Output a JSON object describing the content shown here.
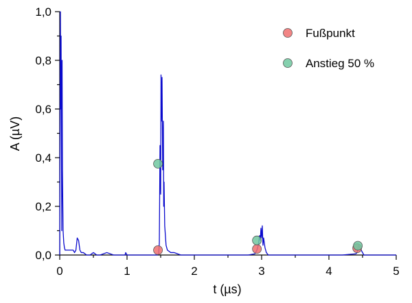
{
  "chart_data": {
    "type": "line",
    "title": "",
    "xlabel": "t (µs)",
    "ylabel": "A (µV)",
    "xlim": [
      0,
      5
    ],
    "ylim": [
      0,
      1.0
    ],
    "xticks": [
      0,
      1,
      2,
      3,
      4,
      5
    ],
    "xtick_labels": [
      "0",
      "1",
      "2",
      "3",
      "4",
      "5"
    ],
    "yticks": [
      0,
      0.2,
      0.4,
      0.6,
      0.8,
      1.0
    ],
    "ytick_labels": [
      "0,0",
      "0,2",
      "0,4",
      "0,6",
      "0,8",
      "1,0"
    ],
    "grid": false,
    "legend_position": "top-right",
    "colors": {
      "signal": "#0a0acd",
      "fusspunkt": "#f07070",
      "anstieg": "#70c8a0"
    },
    "signal": {
      "x": [
        0.0,
        0.01,
        0.015,
        0.02,
        0.03,
        0.035,
        0.04,
        0.05,
        0.06,
        0.07,
        0.08,
        0.1,
        0.15,
        0.2,
        0.22,
        0.24,
        0.26,
        0.28,
        0.3,
        0.32,
        0.35,
        0.4,
        0.45,
        0.5,
        0.55,
        0.6,
        0.7,
        0.8,
        0.9,
        0.97,
        0.98,
        1.0,
        1.1,
        1.2,
        1.3,
        1.4,
        1.45,
        1.47,
        1.48,
        1.49,
        1.5,
        1.505,
        1.51,
        1.52,
        1.53,
        1.54,
        1.545,
        1.55,
        1.56,
        1.57,
        1.58,
        1.6,
        1.65,
        1.7,
        1.75,
        1.8,
        2.0,
        2.2,
        2.4,
        2.6,
        2.8,
        2.9,
        2.93,
        2.95,
        2.97,
        2.98,
        2.99,
        3.0,
        3.01,
        3.02,
        3.03,
        3.05,
        3.07,
        3.1,
        3.2,
        3.4,
        3.6,
        3.8,
        4.0,
        4.2,
        4.4,
        4.42,
        4.44,
        4.46,
        4.48,
        4.5,
        4.52,
        4.6,
        4.8,
        5.0
      ],
      "values": [
        0.0,
        1.0,
        0.6,
        0.9,
        0.1,
        0.8,
        0.35,
        0.1,
        0.05,
        0.03,
        0.02,
        0.02,
        0.02,
        0.02,
        0.01,
        0.02,
        0.07,
        0.06,
        0.02,
        0.01,
        0.01,
        0.0,
        0.0,
        0.01,
        0.0,
        0.0,
        0.01,
        0.0,
        0.0,
        0.0,
        0.01,
        0.0,
        0.0,
        0.0,
        0.0,
        0.0,
        0.0,
        0.005,
        0.05,
        0.45,
        0.25,
        0.74,
        0.55,
        0.73,
        0.35,
        0.55,
        0.2,
        0.3,
        0.12,
        0.08,
        0.04,
        0.02,
        0.01,
        0.01,
        0.005,
        0.0,
        0.0,
        0.0,
        0.0,
        0.0,
        0.0,
        0.005,
        0.02,
        0.04,
        0.08,
        0.06,
        0.11,
        0.07,
        0.12,
        0.04,
        0.07,
        0.03,
        0.01,
        0.0,
        0.0,
        0.0,
        0.0,
        0.0,
        0.0,
        0.0,
        0.005,
        0.01,
        0.04,
        0.03,
        0.02,
        0.01,
        0.0,
        0.0,
        0.0,
        0.0
      ]
    },
    "series": [
      {
        "name": "Fußpunkt",
        "points": [
          [
            1.46,
            0.02
          ],
          [
            2.93,
            0.025
          ],
          [
            4.42,
            0.028
          ]
        ]
      },
      {
        "name": "Anstieg 50 %",
        "points": [
          [
            1.46,
            0.375
          ],
          [
            2.93,
            0.06
          ],
          [
            4.43,
            0.038
          ]
        ]
      }
    ]
  }
}
